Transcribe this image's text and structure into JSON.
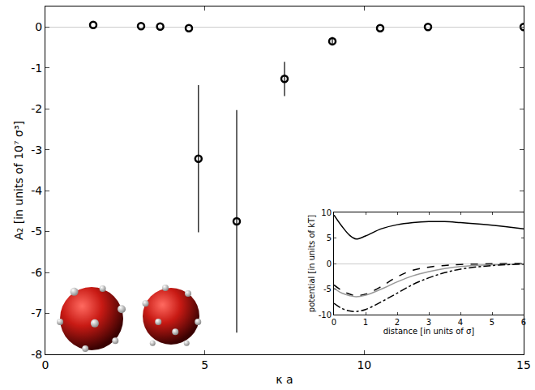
{
  "chart_data": [
    {
      "type": "scatter",
      "x_label": "κ a",
      "y_label": "A₂ [in units of 10⁷ σ³]",
      "x": [
        1.5,
        3.0,
        3.6,
        4.5,
        4.8,
        6.0,
        7.5,
        9.0,
        10.5,
        12.0,
        15.0
      ],
      "values": [
        0.05,
        0.02,
        0.01,
        -0.03,
        -3.22,
        -4.75,
        -1.27,
        -0.35,
        -0.03,
        0.0,
        0.0
      ],
      "error": [
        0,
        0,
        0,
        0,
        1.8,
        2.72,
        0.42,
        0.1,
        0,
        0,
        0
      ],
      "color": "#000000",
      "marker": "circle-open",
      "grid": false,
      "xlim": [
        0,
        15
      ],
      "xticks": [
        0,
        5,
        10,
        15
      ],
      "ylim": [
        -8,
        0.5
      ],
      "yticks": [
        -8,
        -7,
        -6,
        -5,
        -4,
        -3,
        -2,
        -1,
        0
      ]
    },
    {
      "type": "line",
      "x_label": "distance [in units of σ]",
      "y_label": "potential [in units of kT]",
      "x": [
        0,
        0.25,
        0.5,
        0.7,
        1,
        1.5,
        2,
        2.5,
        3,
        3.5,
        4,
        5,
        6
      ],
      "series": [
        {
          "color": "#000000",
          "line_style": "solid",
          "values": [
            9.5,
            7.3,
            5.5,
            4.8,
            5.4,
            6.8,
            7.6,
            8.0,
            8.2,
            8.2,
            8.0,
            7.5,
            6.8
          ]
        },
        {
          "color": "#000000",
          "line_style": "dashed",
          "values": [
            -4.2,
            -5.3,
            -6.0,
            -6.3,
            -6.0,
            -4.5,
            -2.6,
            -1.3,
            -0.7,
            -0.4,
            -0.2,
            -0.05,
            0
          ]
        },
        {
          "color": "#999999",
          "line_style": "solid",
          "values": [
            -4.8,
            -5.8,
            -6.3,
            -6.5,
            -6.2,
            -5.0,
            -3.6,
            -2.4,
            -1.6,
            -1.0,
            -0.6,
            -0.25,
            -0.1
          ]
        },
        {
          "color": "#000000",
          "line_style": "dashdot",
          "values": [
            -7.8,
            -8.8,
            -9.3,
            -9.4,
            -9.0,
            -7.5,
            -5.8,
            -4.1,
            -2.8,
            -1.8,
            -1.1,
            -0.4,
            -0.1
          ]
        }
      ],
      "grid": false,
      "xlim": [
        0,
        6
      ],
      "xticks": [
        0,
        1,
        2,
        3,
        4,
        5,
        6
      ],
      "ylim": [
        -10,
        10
      ],
      "yticks": [
        -10,
        -5,
        0,
        5,
        10
      ]
    }
  ]
}
